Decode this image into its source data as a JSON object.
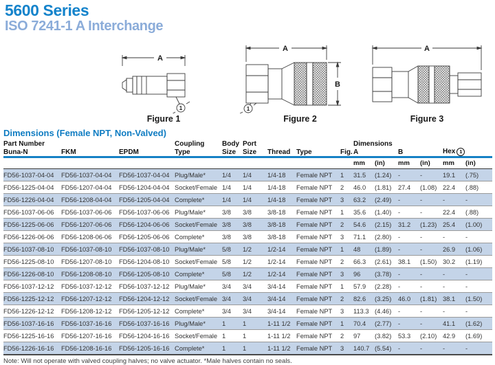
{
  "page": {
    "title_line1": "5600 Series",
    "title_line2": "ISO 7241-1 A Interchange"
  },
  "figures": [
    {
      "caption": "Figure 1",
      "dim_a": "A",
      "callout": "1"
    },
    {
      "caption": "Figure 2",
      "dim_a": "A",
      "dim_b": "B",
      "callout": "1"
    },
    {
      "caption": "Figure 3",
      "dim_a": "A"
    }
  ],
  "table": {
    "title": "Dimensions (Female NPT, Non-Valved)",
    "header": {
      "part_number": "Part Number",
      "buna_n": "Buna-N",
      "fkm": "FKM",
      "epdm": "EPDM",
      "coupling_l1": "Coupling",
      "coupling_l2": "Type",
      "body_l1": "Body",
      "body_l2": "Size",
      "port_l1": "Port",
      "port_l2": "Size",
      "thread": "Thread",
      "type": "Type",
      "fig": "Fig.",
      "dimensions": "Dimensions",
      "a": "A",
      "b": "B",
      "hex": "Hex",
      "hex_note_symbol": "1",
      "mm": "mm",
      "in": "(in)"
    },
    "rows": [
      {
        "buna": "FD56-1037-04-04",
        "fkm": "FD56-1037-04-04",
        "epdm": "FD56-1037-04-04",
        "coupling": "Plug/Male*",
        "body": "1/4",
        "port": "1/4",
        "thread": "1/4-18",
        "type": "Female NPT",
        "fig": "1",
        "a_mm": "31.5",
        "a_in": "(1.24)",
        "b_mm": "-",
        "b_in": "-",
        "hex_mm": "19.1",
        "hex_in": "(.75)"
      },
      {
        "buna": "FD56-1225-04-04",
        "fkm": "FD56-1207-04-04",
        "epdm": "FD56-1204-04-04",
        "coupling": "Socket/Female",
        "body": "1/4",
        "port": "1/4",
        "thread": "1/4-18",
        "type": "Female NPT",
        "fig": "2",
        "a_mm": "46.0",
        "a_in": "(1.81)",
        "b_mm": "27.4",
        "b_in": "(1.08)",
        "hex_mm": "22.4",
        "hex_in": "(.88)"
      },
      {
        "buna": "FD56-1226-04-04",
        "fkm": "FD56-1208-04-04",
        "epdm": "FD56-1205-04-04",
        "coupling": "Complete*",
        "body": "1/4",
        "port": "1/4",
        "thread": "1/4-18",
        "type": "Female NPT",
        "fig": "3",
        "a_mm": "63.2",
        "a_in": "(2.49)",
        "b_mm": "-",
        "b_in": "-",
        "hex_mm": "-",
        "hex_in": "-"
      },
      {
        "buna": "FD56-1037-06-06",
        "fkm": "FD56-1037-06-06",
        "epdm": "FD56-1037-06-06",
        "coupling": "Plug/Male*",
        "body": "3/8",
        "port": "3/8",
        "thread": "3/8-18",
        "type": "Female NPT",
        "fig": "1",
        "a_mm": "35.6",
        "a_in": "(1.40)",
        "b_mm": "-",
        "b_in": "-",
        "hex_mm": "22.4",
        "hex_in": "(.88)"
      },
      {
        "buna": "FD56-1225-06-06",
        "fkm": "FD56-1207-06-06",
        "epdm": "FD56-1204-06-06",
        "coupling": "Socket/Female",
        "body": "3/8",
        "port": "3/8",
        "thread": "3/8-18",
        "type": "Female NPT",
        "fig": "2",
        "a_mm": "54.6",
        "a_in": "(2.15)",
        "b_mm": "31.2",
        "b_in": "(1.23)",
        "hex_mm": "25.4",
        "hex_in": "(1.00)"
      },
      {
        "buna": "FD56-1226-06-06",
        "fkm": "FD56-1208-06-06",
        "epdm": "FD56-1205-06-06",
        "coupling": "Complete*",
        "body": "3/8",
        "port": "3/8",
        "thread": "3/8-18",
        "type": "Female NPT",
        "fig": "3",
        "a_mm": "71.1",
        "a_in": "(2.80)",
        "b_mm": "-",
        "b_in": "-",
        "hex_mm": "-",
        "hex_in": "-"
      },
      {
        "buna": "FD56-1037-08-10",
        "fkm": "FD56-1037-08-10",
        "epdm": "FD56-1037-08-10",
        "coupling": "Plug/Male*",
        "body": "5/8",
        "port": "1/2",
        "thread": "1/2-14",
        "type": "Female NPT",
        "fig": "1",
        "a_mm": "48",
        "a_in": "(1.89)",
        "b_mm": "-",
        "b_in": "-",
        "hex_mm": "26.9",
        "hex_in": "(1.06)"
      },
      {
        "buna": "FD56-1225-08-10",
        "fkm": "FD56-1207-08-10",
        "epdm": "FD56-1204-08-10",
        "coupling": "Socket/Female",
        "body": "5/8",
        "port": "1/2",
        "thread": "1/2-14",
        "type": "Female NPT",
        "fig": "2",
        "a_mm": "66.3",
        "a_in": "(2.61)",
        "b_mm": "38.1",
        "b_in": "(1.50)",
        "hex_mm": "30.2",
        "hex_in": "(1.19)"
      },
      {
        "buna": "FD56-1226-08-10",
        "fkm": "FD56-1208-08-10",
        "epdm": "FD56-1205-08-10",
        "coupling": "Complete*",
        "body": "5/8",
        "port": "1/2",
        "thread": "1/2-14",
        "type": "Female NPT",
        "fig": "3",
        "a_mm": "96",
        "a_in": "(3.78)",
        "b_mm": "-",
        "b_in": "-",
        "hex_mm": "-",
        "hex_in": "-"
      },
      {
        "buna": "FD56-1037-12-12",
        "fkm": "FD56-1037-12-12",
        "epdm": "FD56-1037-12-12",
        "coupling": "Plug/Male*",
        "body": "3/4",
        "port": "3/4",
        "thread": "3/4-14",
        "type": "Female NPT",
        "fig": "1",
        "a_mm": "57.9",
        "a_in": "(2.28)",
        "b_mm": "-",
        "b_in": "-",
        "hex_mm": "-",
        "hex_in": "-"
      },
      {
        "buna": "FD56-1225-12-12",
        "fkm": "FD56-1207-12-12",
        "epdm": "FD56-1204-12-12",
        "coupling": "Socket/Female",
        "body": "3/4",
        "port": "3/4",
        "thread": "3/4-14",
        "type": "Female NPT",
        "fig": "2",
        "a_mm": "82.6",
        "a_in": "(3.25)",
        "b_mm": "46.0",
        "b_in": "(1.81)",
        "hex_mm": "38.1",
        "hex_in": "(1.50)"
      },
      {
        "buna": "FD56-1226-12-12",
        "fkm": "FD56-1208-12-12",
        "epdm": "FD56-1205-12-12",
        "coupling": "Complete*",
        "body": "3/4",
        "port": "3/4",
        "thread": "3/4-14",
        "type": "Female NPT",
        "fig": "3",
        "a_mm": "113.3",
        "a_in": "(4.46)",
        "b_mm": "-",
        "b_in": "-",
        "hex_mm": "-",
        "hex_in": "-"
      },
      {
        "buna": "FD56-1037-16-16",
        "fkm": "FD56-1037-16-16",
        "epdm": "FD56-1037-16-16",
        "coupling": "Plug/Male*",
        "body": "1",
        "port": "1",
        "thread": "1-11 1/2",
        "type": "Female NPT",
        "fig": "1",
        "a_mm": "70.4",
        "a_in": "(2.77)",
        "b_mm": "-",
        "b_in": "-",
        "hex_mm": "41.1",
        "hex_in": "(1.62)"
      },
      {
        "buna": "FD56-1225-16-16",
        "fkm": "FD56-1207-16-16",
        "epdm": "FD56-1204-16-16",
        "coupling": "Socket/Female",
        "body": "1",
        "port": "1",
        "thread": "1-11 1/2",
        "type": "Female NPT",
        "fig": "2",
        "a_mm": "97",
        "a_in": "(3.82)",
        "b_mm": "53.3",
        "b_in": "(2.10)",
        "hex_mm": "42.9",
        "hex_in": "(1.69)"
      },
      {
        "buna": "FD56-1226-16-16",
        "fkm": "FD56-1208-16-16",
        "epdm": "FD56-1205-16-16",
        "coupling": "Complete*",
        "body": "1",
        "port": "1",
        "thread": "1-11 1/2",
        "type": "Female NPT",
        "fig": "3",
        "a_mm": "140.7",
        "a_in": "(5.54)",
        "b_mm": "-",
        "b_in": "-",
        "hex_mm": "-",
        "hex_in": "-"
      }
    ],
    "note": "Note: Will not operate with valved coupling halves; no valve actuator. *Male halves contain no seals."
  },
  "colors": {
    "accent_blue": "#1581c5",
    "subtitle_blue": "#8bacd9",
    "row_shade": "#c4d4e8"
  }
}
